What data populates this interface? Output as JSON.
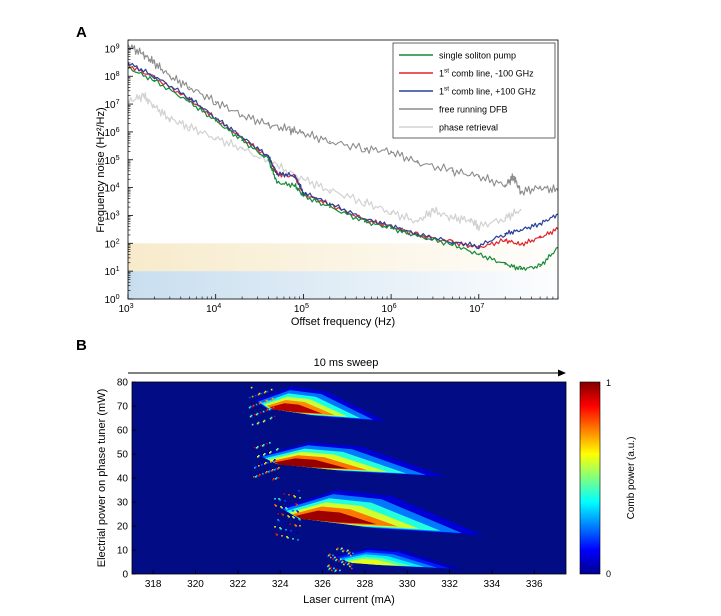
{
  "panels": {
    "a": "A",
    "b": "B"
  },
  "chart_data": [
    {
      "type": "line",
      "panel": "A",
      "xlabel": "Offset frequency (Hz)",
      "ylabel": "Frequency noise (Hz²/Hz)",
      "x_scale": "log",
      "y_scale": "log",
      "xlim": [
        1000,
        80000000
      ],
      "ylim": [
        1,
        2000000000
      ],
      "x_ticks": [
        {
          "v": 1000,
          "m": "10",
          "e": "3"
        },
        {
          "v": 10000,
          "m": "10",
          "e": "4"
        },
        {
          "v": 100000,
          "m": "10",
          "e": "5"
        },
        {
          "v": 1000000,
          "m": "10",
          "e": "6"
        },
        {
          "v": 10000000,
          "m": "10",
          "e": "7"
        }
      ],
      "y_ticks": [
        {
          "v": 1,
          "m": "10",
          "e": "0"
        },
        {
          "v": 10,
          "m": "10",
          "e": "1"
        },
        {
          "v": 100,
          "m": "10",
          "e": "2"
        },
        {
          "v": 1000,
          "m": "10",
          "e": "3"
        },
        {
          "v": 10000,
          "m": "10",
          "e": "4"
        },
        {
          "v": 100000,
          "m": "10",
          "e": "5"
        },
        {
          "v": 1000000,
          "m": "10",
          "e": "6"
        },
        {
          "v": 10000000,
          "m": "10",
          "e": "7"
        },
        {
          "v": 100000000,
          "m": "10",
          "e": "8"
        },
        {
          "v": 1000000000,
          "m": "10",
          "e": "9"
        }
      ],
      "shaded_bands": [
        {
          "from": 10,
          "to": 100,
          "color": "#f6e7c2"
        },
        {
          "from": 1,
          "to": 10,
          "color": "#c5dcee"
        }
      ],
      "legend_position": "top-right",
      "series": [
        {
          "name": "free running DFB",
          "color": "#8c8c8c",
          "x": [
            1000,
            1500,
            2000,
            3000,
            5000,
            10000,
            20000,
            40000,
            70000,
            100000,
            200000,
            500000,
            1000000,
            2000000,
            5000000,
            10000000,
            20000000,
            25000000,
            30000000,
            50000000,
            80000000
          ],
          "y": [
            1300000000,
            600000000,
            300000000,
            100000000,
            40000000,
            12000000,
            4000000,
            1800000,
            1200000,
            900000,
            450000,
            250000,
            200000,
            80000,
            40000,
            25000,
            12000,
            25000,
            7000,
            10000,
            8000
          ]
        },
        {
          "name": "phase retrieval",
          "color": "#d2d2d2",
          "x": [
            1000,
            1500,
            2000,
            3000,
            5000,
            10000,
            20000,
            50000,
            100000,
            200000,
            500000,
            1000000,
            2000000,
            3000000,
            5000000,
            8000000,
            10000000,
            20000000,
            30000000
          ],
          "y": [
            12000000,
            20000000,
            8000000,
            3000000,
            1500000,
            600000,
            250000,
            60000,
            20000,
            8000,
            3000,
            1300,
            600,
            1500,
            800,
            700,
            400,
            800,
            1600
          ]
        },
        {
          "name": "1st comb line, -100 GHz",
          "color": "#e0262b",
          "x": [
            1000,
            2000,
            5000,
            10000,
            20000,
            40000,
            50000,
            80000,
            100000,
            200000,
            500000,
            1000000,
            2000000,
            5000000,
            10000000,
            20000000,
            30000000,
            50000000,
            80000000
          ],
          "y": [
            250000000,
            90000000,
            15000000,
            3000000,
            600000,
            120000,
            30000,
            25000,
            6000,
            2500,
            700,
            400,
            200,
            110,
            70,
            130,
            90,
            160,
            330
          ]
        },
        {
          "name": "1st comb line, +100 GHz",
          "color": "#27409a",
          "x": [
            1000,
            2000,
            5000,
            10000,
            20000,
            40000,
            50000,
            80000,
            100000,
            200000,
            500000,
            1000000,
            2000000,
            5000000,
            10000000,
            20000000,
            30000000,
            50000000,
            80000000
          ],
          "y": [
            300000000,
            100000000,
            17000000,
            3200000,
            650000,
            130000,
            32000,
            27000,
            6500,
            2700,
            750,
            420,
            210,
            110,
            80,
            220,
            300,
            500,
            1100
          ]
        },
        {
          "name": "single soliton pump",
          "color": "#178a3a",
          "x": [
            1000,
            2000,
            5000,
            10000,
            20000,
            40000,
            50000,
            80000,
            100000,
            200000,
            500000,
            1000000,
            2000000,
            5000000,
            10000000,
            20000000,
            30000000,
            50000000,
            80000000
          ],
          "y": [
            200000000,
            70000000,
            12000000,
            2500000,
            500000,
            100000,
            15000,
            12000,
            5000,
            2000,
            600,
            350,
            180,
            90,
            40,
            18,
            12,
            15,
            70
          ]
        }
      ],
      "legend": [
        {
          "main": "single soliton pump",
          "color": "#178a3a"
        },
        {
          "pre": "1",
          "sup": "st",
          "main": " comb line, -100 GHz",
          "color": "#e0262b"
        },
        {
          "pre": "1",
          "sup": "st",
          "main": " comb line, +100 GHz",
          "color": "#27409a"
        },
        {
          "main": "free running DFB",
          "color": "#8c8c8c"
        },
        {
          "main": "phase retrieval",
          "color": "#d2d2d2"
        }
      ]
    },
    {
      "type": "heatmap",
      "panel": "B",
      "annotation": "10 ms sweep",
      "xlabel": "Laser current (mA)",
      "ylabel": "Electrial power on phase tuner (mW)",
      "xlim": [
        317,
        337.5
      ],
      "ylim": [
        0,
        80
      ],
      "x_ticks": [
        318,
        320,
        322,
        324,
        326,
        328,
        330,
        332,
        334,
        336
      ],
      "y_ticks": [
        0,
        10,
        20,
        30,
        40,
        50,
        60,
        70,
        80
      ],
      "background_color": "#020c84",
      "colorbar": {
        "label": "Comb power (a.u.)",
        "min": 0,
        "max": 1,
        "tick_min": "0",
        "tick_max": "1"
      },
      "regions": [
        {
          "x_left": 322.8,
          "x_right": 329.0,
          "y_bottom": 62,
          "y_top": 78,
          "peak": 0.95
        },
        {
          "x_left": 323.0,
          "x_right": 331.8,
          "y_bottom": 39,
          "y_top": 55,
          "peak": 0.98
        },
        {
          "x_left": 324.0,
          "x_right": 333.6,
          "y_bottom": 14,
          "y_top": 35,
          "peak": 0.97
        },
        {
          "x_left": 326.5,
          "x_right": 332.6,
          "y_bottom": 1,
          "y_top": 11,
          "peak": 0.6
        }
      ]
    }
  ]
}
